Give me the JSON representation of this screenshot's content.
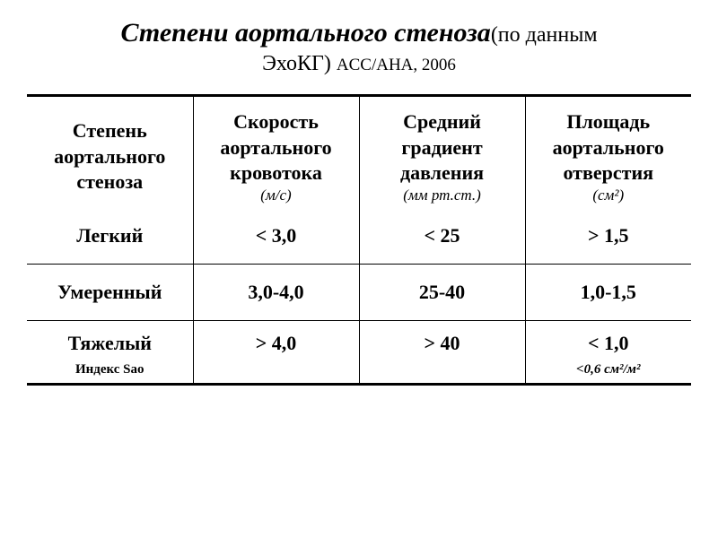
{
  "title": {
    "main": "Степени аортального стеноза",
    "sub1": "(по данным",
    "sub2": "ЭхоКГ) ",
    "sub3": "ACC/AHA, 2006"
  },
  "table": {
    "columns": [
      {
        "label": "Степень аортального стеноза",
        "unit": ""
      },
      {
        "label": "Скорость аортального кровотока",
        "unit": "(м/с)"
      },
      {
        "label": "Средний градиент давления",
        "unit": "(мм рт.ст.)"
      },
      {
        "label": "Площадь аортального отверстия",
        "unit": "(см²)"
      }
    ],
    "rows": [
      {
        "label": "Легкий",
        "sublabel": "",
        "v1": "< 3,0",
        "v2": "< 25",
        "v3": "> 1,5",
        "sub3": ""
      },
      {
        "label": "Умеренный",
        "sublabel": "",
        "v1": "3,0-4,0",
        "v2": "25-40",
        "v3": "1,0-1,5",
        "sub3": ""
      },
      {
        "label": "Тяжелый",
        "sublabel": "Индекс Sао",
        "v1": "> 4,0",
        "v2": "> 40",
        "v3": "< 1,0",
        "sub3": "<0,6 см²/м²"
      }
    ]
  },
  "style": {
    "background": "#ffffff",
    "text_color": "#000000",
    "border_color": "#000000",
    "title_fontsize": 30,
    "subtitle_fontsize": 24,
    "subsubtitle_fontsize": 19,
    "header_fontsize": 22,
    "unit_fontsize": 17,
    "cell_fontsize": 22,
    "sub_fontsize": 15,
    "font_family": "Times New Roman"
  }
}
